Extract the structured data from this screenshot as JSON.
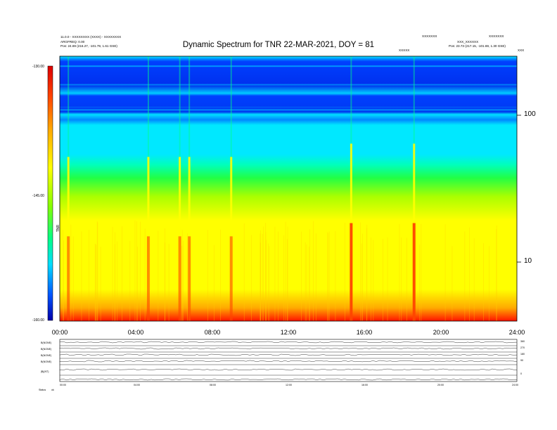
{
  "header": {
    "left_line1": "11.0.0 - XXXXXXXX (XXXX) - XXXXXXXX",
    "left_line2": "ARGFREQ: 0.00",
    "left_line3": "Pos:    24.69 (216.27, -101.79, 1.61 GSE)",
    "right_line1": "XXXXXXX",
    "right_line2": "XXXXXXX",
    "right_line3": "XXX_XXXXXX",
    "right_line4": "Pos:    23.73 (217.15, -101.69, 1.30 GSE)",
    "mid_small": "XXXXX",
    "corner_small": "XXX"
  },
  "chart_data": {
    "type": "heatmap",
    "title": "Dynamic Spectrum for TNR 22-MAR-2021, DOY = 81",
    "x_ticks": [
      "00:00",
      "04:00",
      "08:00",
      "12:00",
      "16:00",
      "20:00",
      "24:00"
    ],
    "x_range_hours": [
      0,
      24
    ],
    "y_scale": "log",
    "y_ticks": [
      10,
      100
    ],
    "y_tick_labels": [
      "10",
      "100"
    ],
    "colorbar": {
      "ticks": [
        "-130.00",
        "-145.00",
        "-160.00"
      ],
      "range": [
        -160,
        -130
      ],
      "label": "TNR",
      "colors": [
        "#0000cc",
        "#0055ff",
        "#00ddff",
        "#00ff88",
        "#88ff00",
        "#ffff00",
        "#ff8800",
        "#ff0000",
        "#cc0000"
      ]
    },
    "bursts_hours": [
      0.45,
      4.65,
      6.3,
      6.8,
      9.0,
      15.3,
      18.6
    ]
  },
  "bottom_panels": {
    "left_labels": [
      "B(NONE)",
      "B(NONE)",
      "B(NONE)",
      "B(NONE)",
      "|B|(NT)"
    ],
    "right_labels": [
      "360",
      "270",
      "180",
      "90",
      "0"
    ],
    "x_ticks": [
      "00:00",
      "04:00",
      "08:00",
      "12:00",
      "16:00",
      "20:00",
      "24:00"
    ],
    "status_label": "Status",
    "status_value": "ok"
  },
  "colors": {
    "blue_top": "#0033ee",
    "cyan": "#00ddff",
    "green": "#00ff66",
    "yellow": "#ffff00",
    "red": "#ff0000"
  }
}
